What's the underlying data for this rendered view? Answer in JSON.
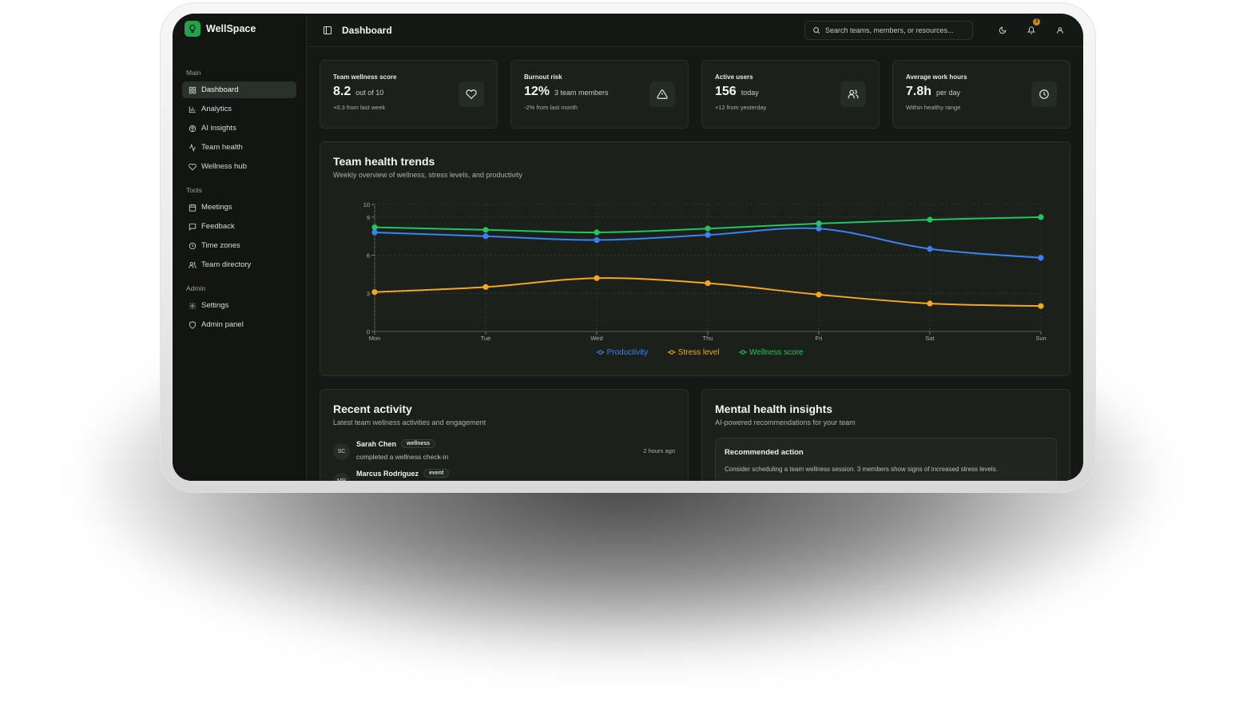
{
  "app": {
    "name": "WellSpace"
  },
  "sidebar": {
    "sections": [
      {
        "label": "Main",
        "items": [
          {
            "label": "Dashboard",
            "icon": "grid-icon",
            "active": true
          },
          {
            "label": "Analytics",
            "icon": "bar-chart-icon"
          },
          {
            "label": "AI insights",
            "icon": "brain-icon"
          },
          {
            "label": "Team health",
            "icon": "activity-icon"
          },
          {
            "label": "Wellness hub",
            "icon": "heart-icon"
          }
        ]
      },
      {
        "label": "Tools",
        "items": [
          {
            "label": "Meetings",
            "icon": "calendar-icon"
          },
          {
            "label": "Feedback",
            "icon": "message-icon"
          },
          {
            "label": "Time zones",
            "icon": "clock-icon"
          },
          {
            "label": "Team directory",
            "icon": "users-icon"
          }
        ]
      },
      {
        "label": "Admin",
        "items": [
          {
            "label": "Settings",
            "icon": "gear-icon"
          },
          {
            "label": "Admin panel",
            "icon": "shield-icon"
          }
        ]
      }
    ]
  },
  "header": {
    "title": "Dashboard",
    "search_placeholder": "Search teams, members, or resources...",
    "notification_count": "3"
  },
  "stats": [
    {
      "title": "Team wellness score",
      "value": "8.2",
      "unit": "out of 10",
      "note": "+0.3 from last week",
      "icon": "heart-icon"
    },
    {
      "title": "Burnout risk",
      "value": "12%",
      "unit": "3 team members",
      "note": "-2% from last month",
      "icon": "alert-triangle-icon"
    },
    {
      "title": "Active users",
      "value": "156",
      "unit": "today",
      "note": "+12 from yesterday",
      "icon": "users-icon"
    },
    {
      "title": "Average work hours",
      "value": "7.8h",
      "unit": "per day",
      "note": "Within healthy range",
      "icon": "clock-icon"
    }
  ],
  "trends": {
    "title": "Team health trends",
    "subtitle": "Weekly overview of wellness, stress levels, and productivity"
  },
  "chart_data": {
    "type": "line",
    "categories": [
      "Mon",
      "Tue",
      "Wed",
      "Thu",
      "Fri",
      "Sat",
      "Sun"
    ],
    "yticks": [
      0,
      3,
      6,
      9,
      10
    ],
    "ylim": [
      0,
      10
    ],
    "grid": true,
    "legend": "bottom-center",
    "series": [
      {
        "name": "Productivity",
        "color": "#3b82f6",
        "values": [
          7.8,
          7.5,
          7.2,
          7.6,
          8.1,
          6.5,
          5.8
        ]
      },
      {
        "name": "Stress level",
        "color": "#f5a623",
        "values": [
          3.1,
          3.5,
          4.2,
          3.8,
          2.9,
          2.2,
          2.0
        ]
      },
      {
        "name": "Wellness score",
        "color": "#22c55e",
        "values": [
          8.2,
          8.0,
          7.8,
          8.1,
          8.5,
          8.8,
          9.0
        ]
      }
    ]
  },
  "activity": {
    "title": "Recent activity",
    "subtitle": "Latest team wellness activities and engagement",
    "items": [
      {
        "initials": "SC",
        "name": "Sarah Chen",
        "tag": "wellness",
        "desc": "completed a wellness check-in",
        "time": "2 hours ago"
      },
      {
        "initials": "MR",
        "name": "Marcus Rodriguez",
        "tag": "event",
        "desc": "",
        "time": ""
      }
    ]
  },
  "insights": {
    "title": "Mental health insights",
    "subtitle": "AI-powered recommendations for your team",
    "rec_title": "Recommended action",
    "rec_text": "Consider scheduling a team wellness session. 3 members show signs of increased stress levels."
  }
}
